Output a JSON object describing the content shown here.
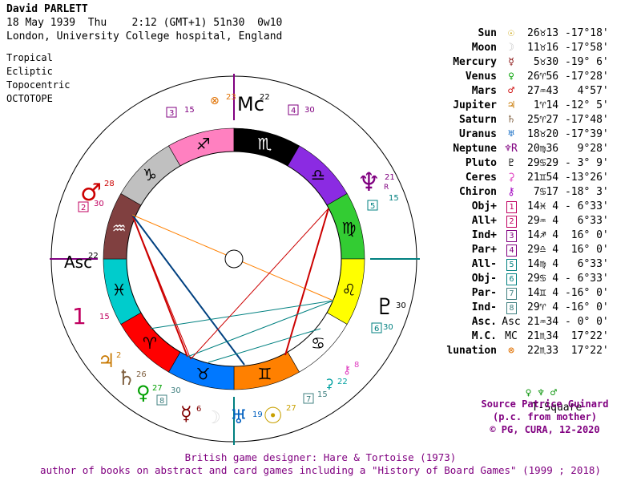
{
  "header": {
    "name": "David PARLETT",
    "line2": "18 May 1939  Thu    2:12 (GMT+1) 51n30  0w10",
    "line3": "London, University College hospital, England"
  },
  "options": [
    "Tropical",
    "Ecliptic",
    "Topocentric",
    "OCTOTOPE"
  ],
  "colors": {
    "purple": "#800080",
    "teal": "#008080",
    "red": "#cc0000",
    "blue": "#000080"
  },
  "chart_wheel": {
    "signs": [
      {
        "glyph": "♎",
        "color": "#8B2BE2"
      },
      {
        "glyph": "♍",
        "color": "#33CC33"
      },
      {
        "glyph": "♌",
        "color": "#FFFF00"
      },
      {
        "glyph": "♋",
        "color": "#FFFFFF"
      },
      {
        "glyph": "♊",
        "color": "#FF8000"
      },
      {
        "glyph": "♉",
        "color": "#0078FF"
      },
      {
        "glyph": "♈",
        "color": "#FF0000"
      },
      {
        "glyph": "♓",
        "color": "#00CCCC"
      },
      {
        "glyph": "♒",
        "color": "#804040"
      },
      {
        "glyph": "♑",
        "color": "#C0C0C0"
      },
      {
        "glyph": "♐",
        "color": "#FF80C0"
      },
      {
        "glyph": "♏",
        "color": "#000000"
      }
    ],
    "labels": {
      "mc": "Mc",
      "mc_deg": "22",
      "asc": "Asc",
      "asc_deg": "22",
      "neptune_deg": "21",
      "neptune_r": "R",
      "mars_deg": "28",
      "pluto_deg": "30",
      "uranus_deg": "19",
      "ceres_deg": "22",
      "ceres_deg2": "8",
      "jupiter_deg": "2",
      "saturn_deg": "26",
      "venus_deg": "27",
      "mercury_deg": "6",
      "sun_deg": "27",
      "lunation_deg": "23",
      "box1": "1",
      "box1_deg": "15",
      "box2": "2",
      "box2_deg": "30",
      "box3": "3",
      "box3_deg": "15",
      "box4": "4",
      "box4_deg": "30",
      "box5": "5",
      "box5_deg": "15",
      "box6": "6",
      "box6_deg": "30",
      "box7": "7",
      "box7_deg": "15",
      "box8": "8",
      "box8_deg": "30"
    }
  },
  "planets": [
    {
      "name": "Sun",
      "glyph": "☉",
      "color": "#c8a000",
      "pos": "26♉13 -17°18'"
    },
    {
      "name": "Moon",
      "glyph": "☽",
      "color": "#c0c0c0",
      "pos": "11♉16 -17°58'"
    },
    {
      "name": "Mercury",
      "glyph": "☿",
      "color": "#800000",
      "pos": " 5♉30 -19° 6'"
    },
    {
      "name": "Venus",
      "glyph": "♀",
      "color": "#00a000",
      "pos": "26♈56 -17°28'"
    },
    {
      "name": "Mars",
      "glyph": "♂",
      "color": "#cc0000",
      "pos": "27♒43   4°57'"
    },
    {
      "name": "Jupiter",
      "glyph": "♃",
      "color": "#c87800",
      "pos": " 1♈14 -12° 5'"
    },
    {
      "name": "Saturn",
      "glyph": "♄",
      "color": "#806040",
      "pos": "25♈27 -17°48'"
    },
    {
      "name": "Uranus",
      "glyph": "♅",
      "color": "#0060c0",
      "pos": "18♉20 -17°39'"
    },
    {
      "name": "Neptune",
      "glyph": "♆R",
      "color": "#800080",
      "pos": "20♍36   9°28'"
    },
    {
      "name": "Pluto",
      "glyph": "♇",
      "color": "#000000",
      "pos": "29♋29 - 3° 9'"
    },
    {
      "name": "Ceres",
      "glyph": "⚳",
      "color": "#e040c0",
      "pos": "21♊54 -13°26'"
    },
    {
      "name": "Chiron",
      "glyph": "⚷",
      "color": "#a000c0",
      "pos": " 7♋17 -18° 3'"
    },
    {
      "name": "Obj+",
      "glyph": "1",
      "color": "#c00060",
      "pos": "14♓ 4 - 6°33'"
    },
    {
      "name": "All+",
      "glyph": "2",
      "color": "#c00060",
      "pos": "29♒ 4   6°33'"
    },
    {
      "name": "Ind+",
      "glyph": "3",
      "color": "#800080",
      "pos": "14♐ 4  16° 0'"
    },
    {
      "name": "Par+",
      "glyph": "4",
      "color": "#800080",
      "pos": "29♎ 4  16° 0'"
    },
    {
      "name": "All-",
      "glyph": "5",
      "color": "#008080",
      "pos": "14♍ 4   6°33'"
    },
    {
      "name": "Obj-",
      "glyph": "6",
      "color": "#008080",
      "pos": "29♋ 4 - 6°33'"
    },
    {
      "name": "Par-",
      "glyph": "7",
      "color": "#408080",
      "pos": "14♊ 4 -16° 0'"
    },
    {
      "name": "Ind-",
      "glyph": "8",
      "color": "#408080",
      "pos": "29♈ 4 -16° 0'"
    },
    {
      "name": "Asc.",
      "glyph": "Asc",
      "color": "#000000",
      "pos": "21♒34 - 0° 0'"
    },
    {
      "name": "M.C.",
      "glyph": "MC",
      "color": "#000000",
      "pos": "21♏34  17°22'"
    },
    {
      "name": "lunation",
      "glyph": "⊗",
      "color": "#e07000",
      "pos": "22♏33  17°22'"
    }
  ],
  "tsquare": {
    "glyphs": "♀ ♆ ♂",
    "label": "T-Square"
  },
  "source": {
    "line1": "Source Patrice Guinard",
    "line2": "(p.c. from mother)",
    "line3": "© PG, CURA, 12-2020"
  },
  "footer": {
    "line1": "British game designer: Hare & Tortoise (1973)",
    "line2": "author of books on abstract and card games including a \"History of Board Games\" (1999 ; 2018)"
  }
}
